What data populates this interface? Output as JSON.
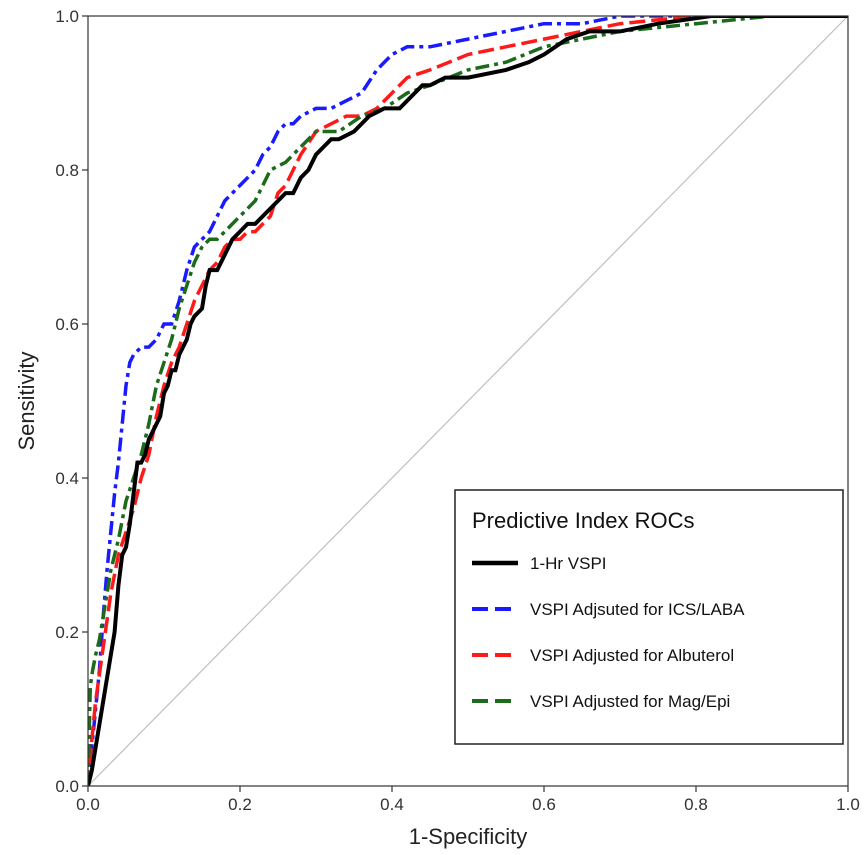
{
  "chart_data": {
    "type": "line",
    "title": "",
    "xlabel": "1-Specificity",
    "ylabel": "Sensitivity",
    "xlim": [
      0,
      1
    ],
    "ylim": [
      0,
      1
    ],
    "x_ticks": [
      "0.0",
      "0.2",
      "0.4",
      "0.6",
      "0.8",
      "1.0"
    ],
    "y_ticks": [
      "0.0",
      "0.2",
      "0.4",
      "0.6",
      "0.8",
      "1.0"
    ],
    "grid": false,
    "legend": {
      "title": "Predictive Index ROCs",
      "position": "bottom-right"
    },
    "reference_line": {
      "x": [
        0,
        1
      ],
      "y": [
        0,
        1
      ],
      "color": "#bfbfbf"
    },
    "series": [
      {
        "name": "1-Hr VSPI",
        "color": "#000000",
        "dash": "solid",
        "x": [
          0,
          0.005,
          0.01,
          0.015,
          0.02,
          0.025,
          0.03,
          0.035,
          0.04,
          0.045,
          0.05,
          0.055,
          0.06,
          0.065,
          0.07,
          0.075,
          0.08,
          0.09,
          0.095,
          0.1,
          0.105,
          0.11,
          0.115,
          0.12,
          0.13,
          0.135,
          0.14,
          0.15,
          0.155,
          0.16,
          0.17,
          0.18,
          0.19,
          0.2,
          0.21,
          0.22,
          0.24,
          0.26,
          0.27,
          0.28,
          0.29,
          0.3,
          0.31,
          0.32,
          0.33,
          0.35,
          0.37,
          0.39,
          0.41,
          0.43,
          0.44,
          0.45,
          0.47,
          0.5,
          0.55,
          0.58,
          0.6,
          0.63,
          0.66,
          0.7,
          0.75,
          0.82,
          0.85,
          0.9,
          0.95,
          1
        ],
        "y": [
          0,
          0.02,
          0.05,
          0.08,
          0.11,
          0.14,
          0.17,
          0.2,
          0.26,
          0.3,
          0.31,
          0.34,
          0.38,
          0.42,
          0.42,
          0.43,
          0.45,
          0.47,
          0.48,
          0.51,
          0.52,
          0.54,
          0.54,
          0.56,
          0.58,
          0.6,
          0.61,
          0.62,
          0.65,
          0.67,
          0.67,
          0.69,
          0.71,
          0.72,
          0.73,
          0.73,
          0.75,
          0.77,
          0.77,
          0.79,
          0.8,
          0.82,
          0.83,
          0.84,
          0.84,
          0.85,
          0.87,
          0.88,
          0.88,
          0.9,
          0.91,
          0.91,
          0.92,
          0.92,
          0.93,
          0.94,
          0.95,
          0.97,
          0.98,
          0.98,
          0.99,
          1,
          1,
          1,
          1,
          1
        ]
      },
      {
        "name": "VSPI Adjsuted for ICS/LABA",
        "color": "#1a1aff",
        "dash": "dashdot",
        "x": [
          0,
          0.005,
          0.01,
          0.015,
          0.02,
          0.025,
          0.03,
          0.035,
          0.04,
          0.045,
          0.05,
          0.055,
          0.06,
          0.07,
          0.08,
          0.09,
          0.1,
          0.11,
          0.12,
          0.13,
          0.14,
          0.15,
          0.16,
          0.17,
          0.18,
          0.2,
          0.21,
          0.22,
          0.23,
          0.24,
          0.25,
          0.26,
          0.27,
          0.28,
          0.3,
          0.32,
          0.34,
          0.36,
          0.38,
          0.4,
          0.42,
          0.45,
          0.5,
          0.55,
          0.6,
          0.65,
          0.7,
          0.8,
          0.9,
          1
        ],
        "y": [
          0,
          0.05,
          0.1,
          0.15,
          0.22,
          0.28,
          0.33,
          0.38,
          0.42,
          0.47,
          0.52,
          0.55,
          0.56,
          0.57,
          0.57,
          0.58,
          0.6,
          0.6,
          0.63,
          0.67,
          0.7,
          0.71,
          0.72,
          0.74,
          0.76,
          0.78,
          0.79,
          0.8,
          0.82,
          0.83,
          0.85,
          0.86,
          0.86,
          0.87,
          0.88,
          0.88,
          0.89,
          0.9,
          0.93,
          0.95,
          0.96,
          0.96,
          0.97,
          0.98,
          0.99,
          0.99,
          1,
          1,
          1,
          1
        ]
      },
      {
        "name": "VSPI Adjusted for Albuterol",
        "color": "#ff1a1a",
        "dash": "dashed",
        "x": [
          0,
          0.005,
          0.01,
          0.02,
          0.03,
          0.04,
          0.05,
          0.06,
          0.07,
          0.08,
          0.09,
          0.1,
          0.11,
          0.12,
          0.13,
          0.14,
          0.15,
          0.16,
          0.17,
          0.18,
          0.19,
          0.2,
          0.21,
          0.22,
          0.23,
          0.24,
          0.25,
          0.26,
          0.27,
          0.28,
          0.3,
          0.32,
          0.34,
          0.36,
          0.38,
          0.4,
          0.42,
          0.45,
          0.5,
          0.55,
          0.6,
          0.65,
          0.7,
          0.8,
          0.9,
          1
        ],
        "y": [
          0,
          0.06,
          0.11,
          0.18,
          0.25,
          0.3,
          0.33,
          0.36,
          0.4,
          0.43,
          0.48,
          0.52,
          0.55,
          0.57,
          0.6,
          0.63,
          0.65,
          0.67,
          0.68,
          0.7,
          0.71,
          0.71,
          0.72,
          0.72,
          0.73,
          0.74,
          0.77,
          0.78,
          0.8,
          0.82,
          0.85,
          0.86,
          0.87,
          0.87,
          0.88,
          0.9,
          0.92,
          0.93,
          0.95,
          0.96,
          0.97,
          0.98,
          0.99,
          1,
          1,
          1
        ]
      },
      {
        "name": "VSPI Adjusted for Mag/Epi",
        "color": "#1a6b1a",
        "dash": "dashdot",
        "x": [
          0,
          0.003,
          0.006,
          0.01,
          0.015,
          0.02,
          0.025,
          0.03,
          0.04,
          0.05,
          0.06,
          0.07,
          0.08,
          0.09,
          0.1,
          0.11,
          0.12,
          0.13,
          0.14,
          0.15,
          0.16,
          0.17,
          0.18,
          0.2,
          0.22,
          0.24,
          0.26,
          0.28,
          0.3,
          0.33,
          0.36,
          0.39,
          0.42,
          0.45,
          0.5,
          0.55,
          0.6,
          0.65,
          0.7,
          0.8,
          0.9,
          1
        ],
        "y": [
          0,
          0.13,
          0.15,
          0.17,
          0.19,
          0.22,
          0.25,
          0.28,
          0.32,
          0.37,
          0.4,
          0.43,
          0.47,
          0.52,
          0.55,
          0.58,
          0.62,
          0.65,
          0.68,
          0.7,
          0.71,
          0.71,
          0.72,
          0.74,
          0.76,
          0.8,
          0.81,
          0.83,
          0.85,
          0.85,
          0.87,
          0.88,
          0.9,
          0.91,
          0.93,
          0.94,
          0.96,
          0.97,
          0.98,
          0.99,
          1,
          1
        ]
      }
    ]
  }
}
